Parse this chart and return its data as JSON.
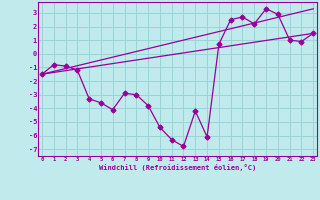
{
  "xlabel": "Windchill (Refroidissement éolien,°C)",
  "background_color": "#c0eaec",
  "grid_color": "#98d4d8",
  "line_color": "#990099",
  "x_values": [
    0,
    1,
    2,
    3,
    4,
    5,
    6,
    7,
    8,
    9,
    10,
    11,
    12,
    13,
    14,
    15,
    16,
    17,
    18,
    19,
    20,
    21,
    22,
    23
  ],
  "curve_y": [
    -1.5,
    -0.8,
    -0.9,
    -1.2,
    -3.3,
    -3.6,
    -4.1,
    -2.9,
    -3.0,
    -3.8,
    -5.4,
    -6.3,
    -6.8,
    -4.2,
    -6.1,
    0.7,
    2.5,
    2.7,
    2.2,
    3.3,
    2.9,
    1.0,
    0.9,
    1.5
  ],
  "line1_x": [
    0,
    23
  ],
  "line1_y": [
    -1.5,
    3.3
  ],
  "line2_x": [
    0,
    23
  ],
  "line2_y": [
    -1.5,
    1.5
  ],
  "ylim": [
    -7.5,
    3.8
  ],
  "yticks": [
    -7,
    -6,
    -5,
    -4,
    -3,
    -2,
    -1,
    0,
    1,
    2,
    3
  ],
  "xticks": [
    0,
    1,
    2,
    3,
    4,
    5,
    6,
    7,
    8,
    9,
    10,
    11,
    12,
    13,
    14,
    15,
    16,
    17,
    18,
    19,
    20,
    21,
    22,
    23
  ]
}
